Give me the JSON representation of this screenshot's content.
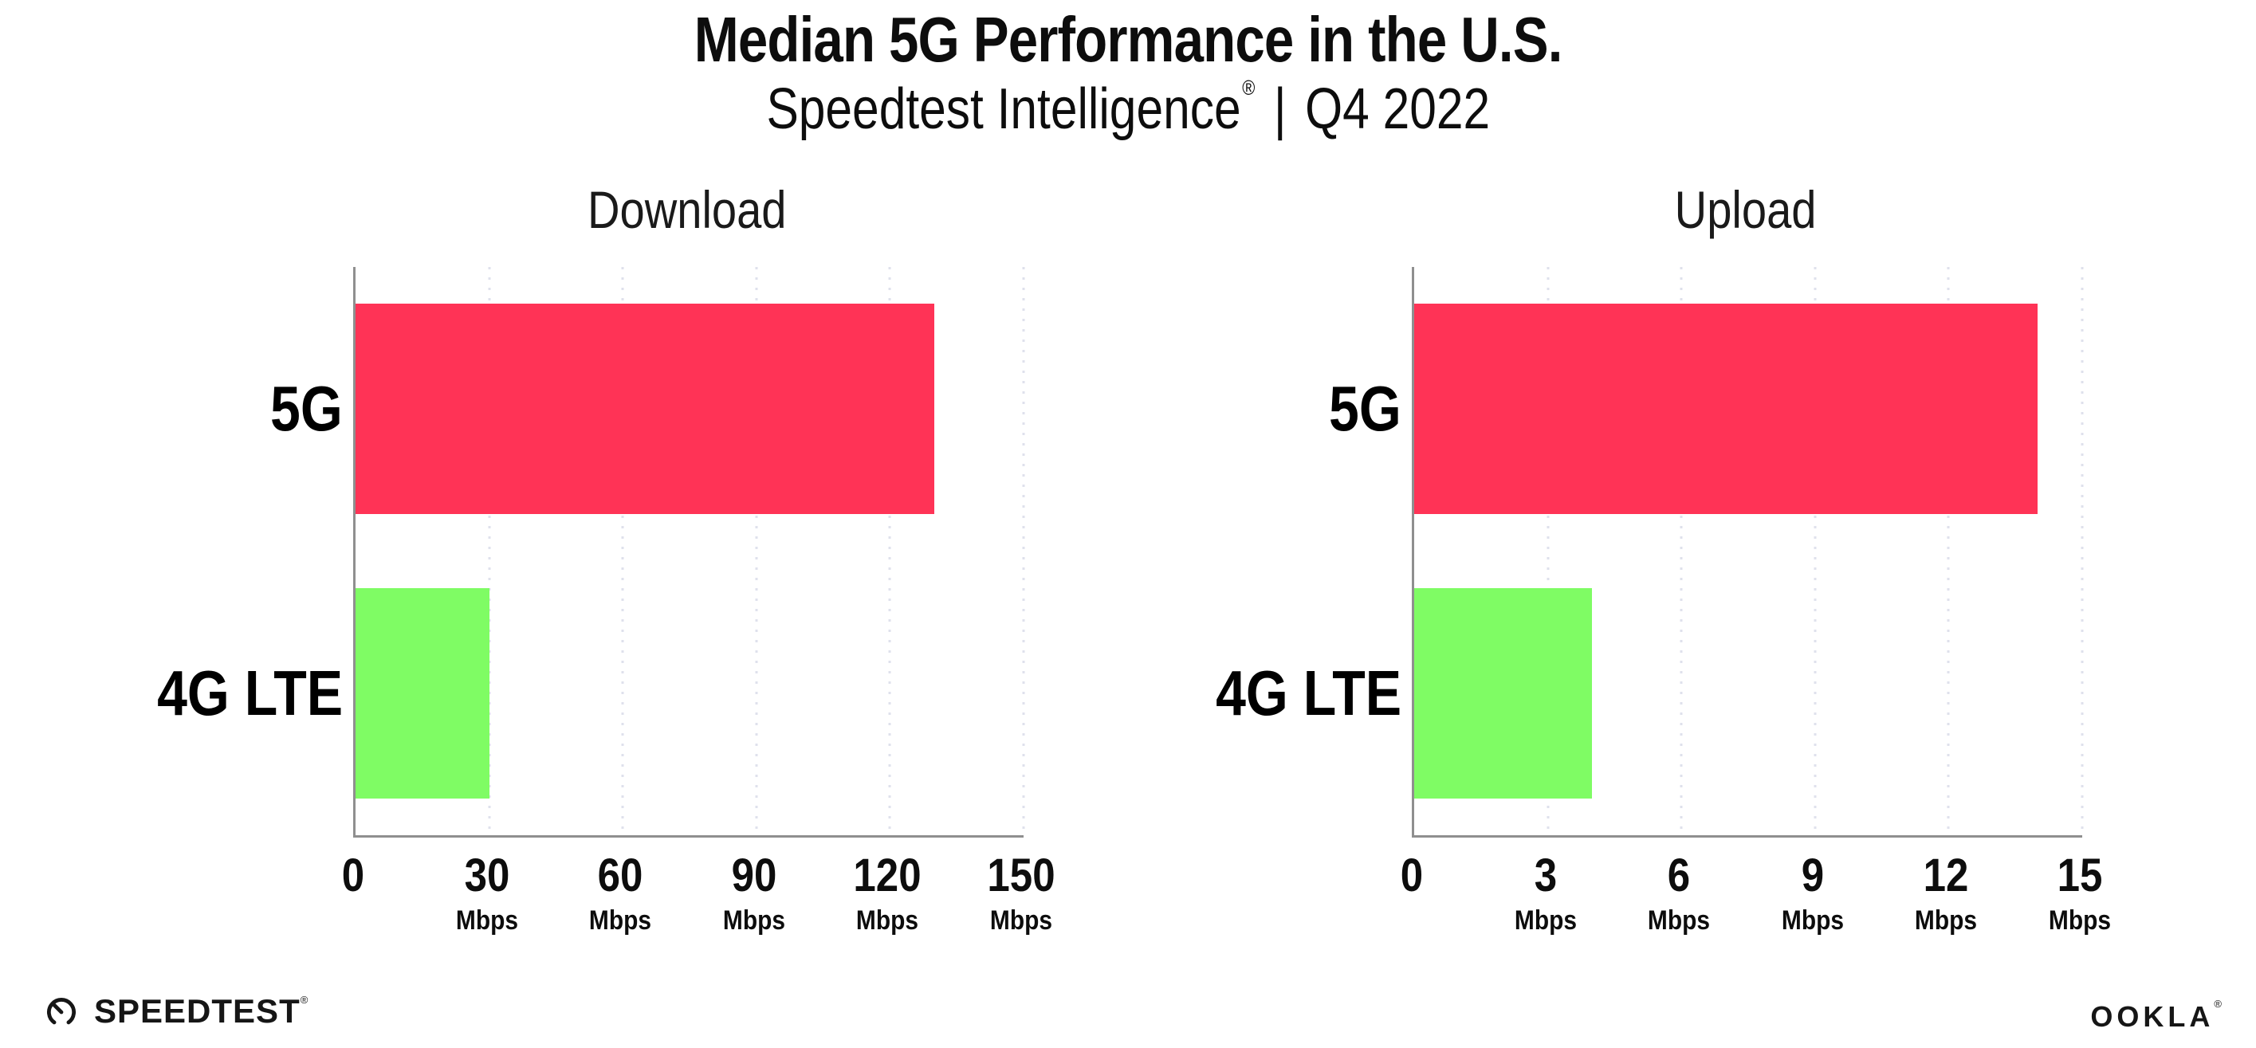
{
  "header": {
    "title": "Median 5G Performance in the U.S.",
    "subtitle": {
      "brand": "Speedtest Intelligence",
      "reg": "®",
      "separator": "|",
      "period": "Q4 2022"
    }
  },
  "colors": {
    "bar_5g": "#FF3356",
    "bar_4g_lte": "#7FFC64",
    "axis": "#8F8F8F",
    "grid": "#DFE1EC",
    "text": "#0D0D0D"
  },
  "chart_data": [
    {
      "type": "bar",
      "orientation": "horizontal",
      "title": "Download",
      "categories": [
        "5G",
        "4G LTE"
      ],
      "values": [
        130,
        30
      ],
      "unit": "Mbps",
      "xlim": [
        0,
        150
      ],
      "xticks": [
        0,
        30,
        60,
        90,
        120,
        150
      ],
      "grid": "dotted-vertical",
      "legend": "none",
      "bar_colors": [
        "#FF3356",
        "#7FFC64"
      ]
    },
    {
      "type": "bar",
      "orientation": "horizontal",
      "title": "Upload",
      "categories": [
        "5G",
        "4G LTE"
      ],
      "values": [
        14,
        4
      ],
      "unit": "Mbps",
      "xlim": [
        0,
        15
      ],
      "xticks": [
        0,
        3,
        6,
        9,
        12,
        15
      ],
      "grid": "dotted-vertical",
      "legend": "none",
      "bar_colors": [
        "#FF3356",
        "#7FFC64"
      ]
    }
  ],
  "footer": {
    "speedtest_label": "SPEEDTEST",
    "speedtest_reg": "®",
    "speedtest_icon": "speedtest-gauge-icon",
    "ookla_label": "OOKLA",
    "ookla_reg": "®"
  }
}
